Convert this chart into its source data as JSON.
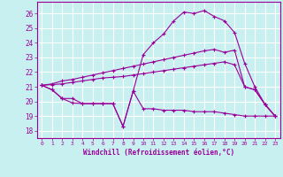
{
  "xlabel": "Windchill (Refroidissement éolien,°C)",
  "bg_color": "#c8f0f0",
  "grid_color": "#ffffff",
  "line_color": "#990099",
  "xlim": [
    -0.5,
    23.5
  ],
  "ylim": [
    17.5,
    26.8
  ],
  "yticks": [
    18,
    19,
    20,
    21,
    22,
    23,
    24,
    25,
    26
  ],
  "xticks": [
    0,
    1,
    2,
    3,
    4,
    5,
    6,
    7,
    8,
    9,
    10,
    11,
    12,
    13,
    14,
    15,
    16,
    17,
    18,
    19,
    20,
    21,
    22,
    23
  ],
  "series1_x": [
    0,
    1,
    2,
    3,
    4,
    5,
    6,
    7,
    8,
    9,
    10,
    11,
    12,
    13,
    14,
    15,
    16,
    17,
    18,
    19,
    20,
    21,
    22,
    23
  ],
  "series1_y": [
    21.1,
    20.8,
    20.2,
    19.9,
    19.85,
    19.85,
    19.85,
    19.85,
    18.3,
    20.7,
    19.5,
    19.5,
    19.4,
    19.4,
    19.4,
    19.3,
    19.3,
    19.3,
    19.2,
    19.1,
    19.0,
    19.0,
    19.0,
    19.0
  ],
  "series2_x": [
    0,
    1,
    2,
    3,
    4,
    5,
    6,
    7,
    8,
    9,
    10,
    11,
    12,
    13,
    14,
    15,
    16,
    17,
    18,
    19,
    20,
    21,
    22,
    23
  ],
  "series2_y": [
    21.1,
    21.15,
    21.2,
    21.3,
    21.4,
    21.5,
    21.6,
    21.65,
    21.7,
    21.8,
    21.9,
    22.0,
    22.1,
    22.2,
    22.3,
    22.4,
    22.5,
    22.6,
    22.7,
    22.5,
    21.0,
    20.8,
    19.8,
    19.0
  ],
  "series3_x": [
    0,
    1,
    2,
    3,
    4,
    5,
    6,
    7,
    8,
    9,
    10,
    11,
    12,
    13,
    14,
    15,
    16,
    17,
    18,
    19,
    20,
    21,
    22,
    23
  ],
  "series3_y": [
    21.1,
    21.2,
    21.4,
    21.5,
    21.65,
    21.8,
    21.95,
    22.1,
    22.25,
    22.4,
    22.55,
    22.7,
    22.85,
    23.0,
    23.15,
    23.3,
    23.45,
    23.55,
    23.35,
    23.5,
    21.0,
    20.8,
    19.8,
    19.0
  ],
  "series4_x": [
    0,
    1,
    2,
    3,
    4,
    5,
    6,
    7,
    8,
    9,
    10,
    11,
    12,
    13,
    14,
    15,
    16,
    17,
    18,
    19,
    20,
    21,
    22,
    23
  ],
  "series4_y": [
    21.1,
    20.8,
    20.2,
    20.2,
    19.85,
    19.85,
    19.85,
    19.85,
    18.3,
    20.7,
    23.2,
    24.0,
    24.6,
    25.5,
    26.1,
    26.0,
    26.2,
    25.8,
    25.5,
    24.7,
    22.6,
    21.0,
    19.8,
    19.0
  ]
}
